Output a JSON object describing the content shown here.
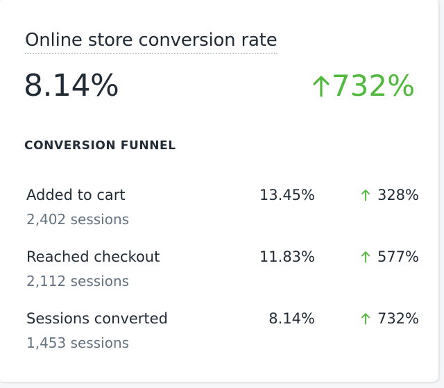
{
  "card": {
    "title": "Online store conversion rate",
    "value": "8.14%",
    "change": "732%",
    "change_direction": "up",
    "positive_color": "#50b83c"
  },
  "funnel": {
    "heading": "CONVERSION FUNNEL",
    "rows": [
      {
        "label": "Added to cart",
        "sessions": "2,402 sessions",
        "percent": "13.45%",
        "change": "328%",
        "change_icon": "arrow-up-icon"
      },
      {
        "label": "Reached checkout",
        "sessions": "2,112 sessions",
        "percent": "11.83%",
        "change": "577%",
        "change_icon": "arrow-up-icon"
      },
      {
        "label": "Sessions converted",
        "sessions": "1,453 sessions",
        "percent": "8.14%",
        "change": "732%",
        "change_icon": "arrow-up-icon"
      }
    ]
  }
}
